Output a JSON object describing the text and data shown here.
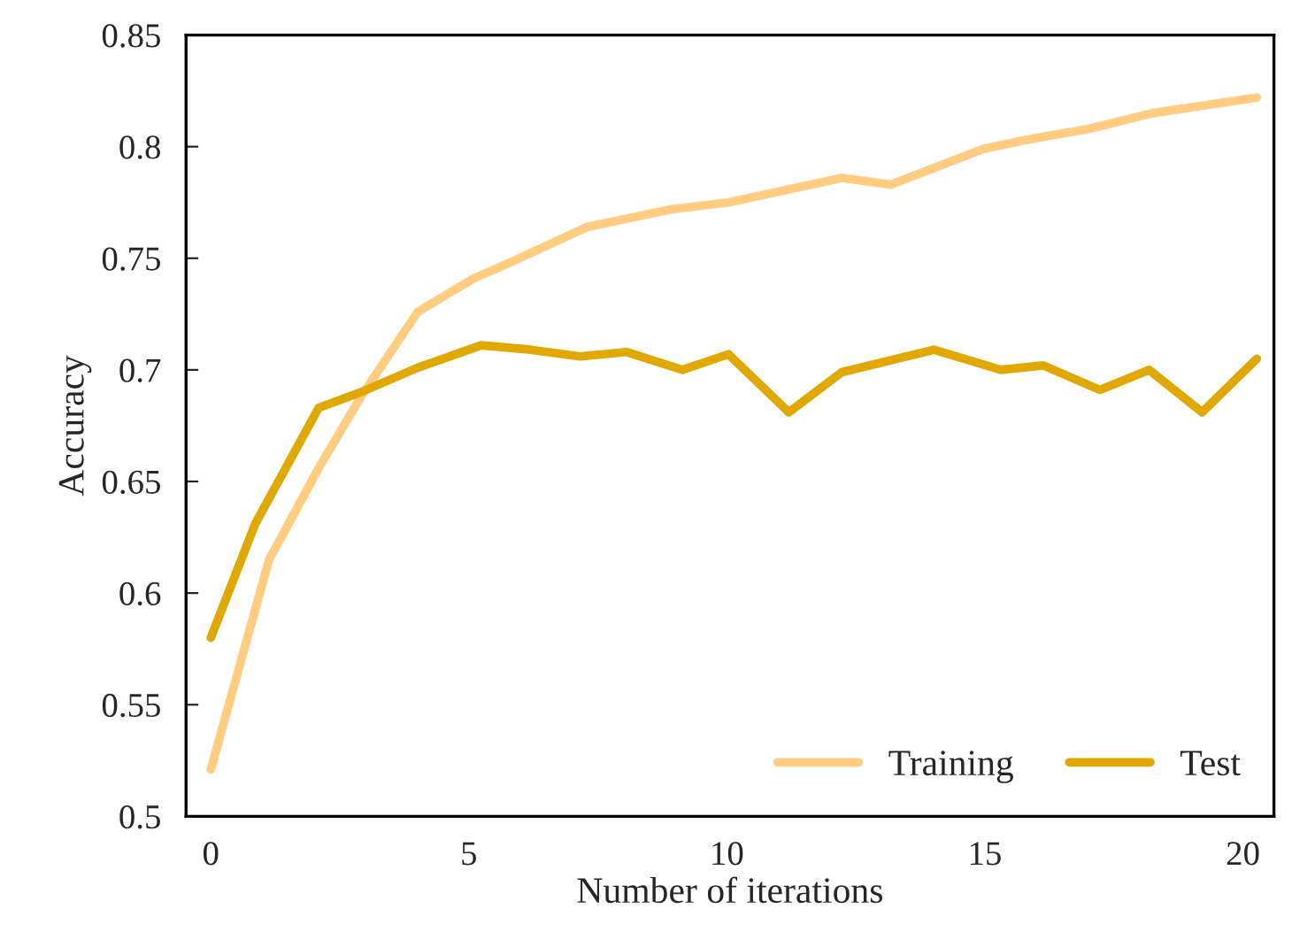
{
  "chart_data": {
    "type": "line",
    "xlabel": "Number of iterations",
    "ylabel": "Accuracy",
    "xlim": [
      -0.48,
      20.6
    ],
    "ylim": [
      0.5,
      0.85
    ],
    "xticks": [
      0,
      5,
      10,
      15,
      20
    ],
    "yticks": [
      0.5,
      0.55,
      0.6,
      0.65,
      0.7,
      0.75,
      0.8,
      0.85
    ],
    "grid": false,
    "legend": "bottom right",
    "marker": "none",
    "line_style": "solid",
    "series": [
      {
        "name": "Training",
        "color": "#ffcc80",
        "x": [
          0,
          1.13,
          2.09,
          2.91,
          4.01,
          5.1,
          5.79,
          7.29,
          8.94,
          10.03,
          12.23,
          13.18,
          14.97,
          15.79,
          17.02,
          18.25,
          20.27
        ],
        "values": [
          0.521,
          0.615,
          0.656,
          0.688,
          0.726,
          0.741,
          0.748,
          0.764,
          0.772,
          0.775,
          0.786,
          0.783,
          0.799,
          0.803,
          0.808,
          0.815,
          0.822
        ]
      },
      {
        "name": "Test",
        "color": "#e0a800",
        "x": [
          0,
          0.86,
          2.09,
          2.91,
          4.01,
          5.24,
          6.2,
          7.16,
          8.05,
          9.14,
          10.03,
          11.2,
          12.23,
          14.01,
          15.31,
          16.13,
          17.23,
          18.18,
          19.21,
          20.27
        ],
        "values": [
          0.58,
          0.631,
          0.683,
          0.69,
          0.701,
          0.711,
          0.709,
          0.706,
          0.708,
          0.7,
          0.707,
          0.681,
          0.699,
          0.709,
          0.7,
          0.702,
          0.691,
          0.7,
          0.681,
          0.705
        ]
      }
    ]
  }
}
